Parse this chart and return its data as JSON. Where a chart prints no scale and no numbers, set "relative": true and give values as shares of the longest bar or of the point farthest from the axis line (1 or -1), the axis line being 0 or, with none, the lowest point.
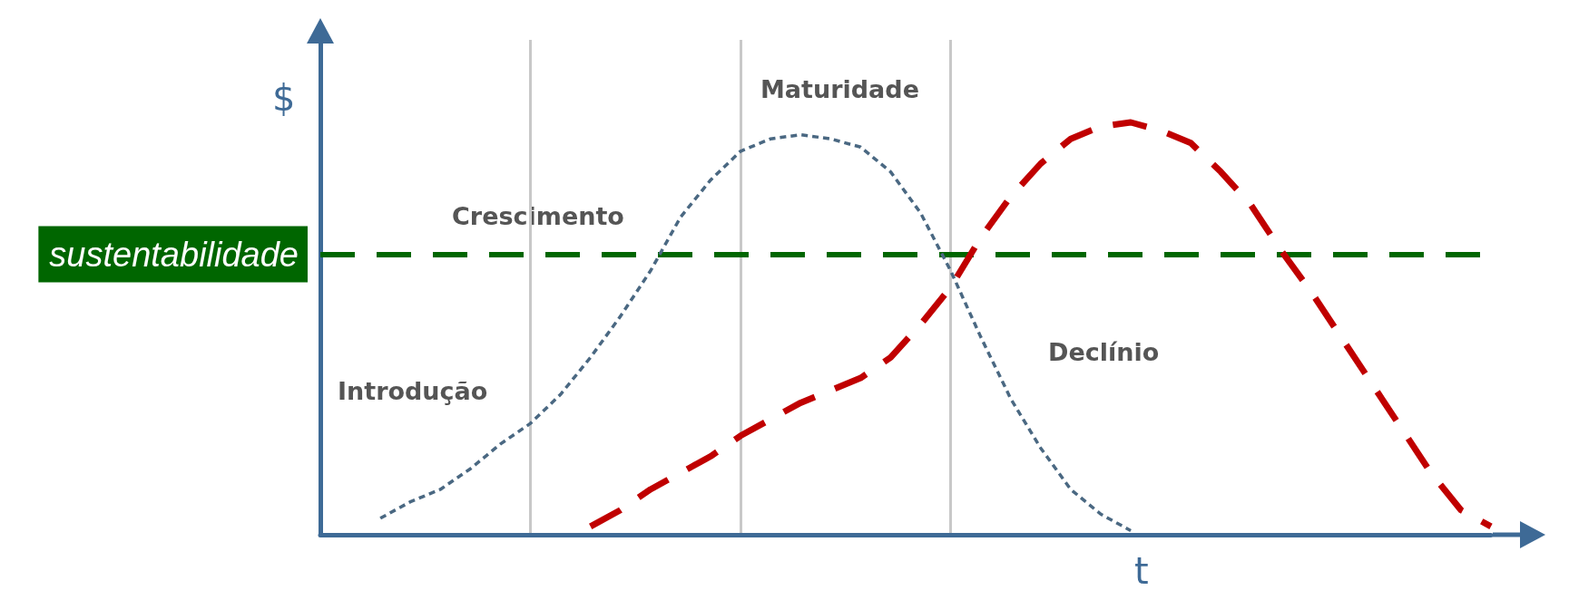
{
  "chart_data": {
    "type": "line",
    "relative": true,
    "xlabel": "t",
    "ylabel": "$",
    "grid": "x",
    "marker": "none",
    "categories": [
      null,
      null,
      null,
      null,
      null,
      null,
      null,
      null,
      null,
      null,
      null,
      null,
      null,
      null,
      null,
      null,
      null,
      null,
      null,
      null,
      null,
      null,
      null,
      null,
      null,
      null,
      null,
      null,
      null,
      null,
      null,
      null,
      null,
      null,
      null,
      null,
      null,
      null,
      null,
      null
    ],
    "series": [
      {
        "values": [
          null,
          null,
          0.04,
          0.08,
          0.11,
          0.16,
          0.22,
          0.27,
          0.34,
          0.43,
          0.53,
          0.64,
          0.77,
          0.86,
          0.93,
          0.96,
          0.97,
          0.96,
          0.94,
          0.88,
          0.78,
          0.64,
          0.48,
          0.33,
          0.21,
          0.11,
          0.05,
          0.01,
          null,
          null,
          null,
          null,
          null,
          null,
          null,
          null,
          null,
          null,
          null,
          null
        ],
        "color": "#4a6882",
        "line_style": "dotted"
      },
      {
        "values": [
          null,
          null,
          null,
          null,
          null,
          null,
          null,
          null,
          null,
          0.02,
          0.06,
          0.11,
          0.15,
          0.19,
          0.24,
          0.28,
          0.32,
          0.35,
          0.38,
          0.43,
          0.51,
          0.6,
          0.72,
          0.82,
          0.9,
          0.96,
          0.99,
          1,
          0.98,
          0.95,
          0.88,
          0.8,
          0.69,
          0.59,
          0.48,
          0.37,
          0.26,
          0.15,
          0.06,
          0.02
        ],
        "color": "#c00000",
        "line_style": "dashed"
      }
    ],
    "ref_lines": [
      {
        "axis": "y",
        "value": 0.68,
        "label": "sustentabilidade",
        "color": "#006600",
        "line_style": "dashed"
      }
    ],
    "annotations": [
      "Introdução",
      "Crescimento",
      "Maturidade",
      "Declínio"
    ]
  }
}
